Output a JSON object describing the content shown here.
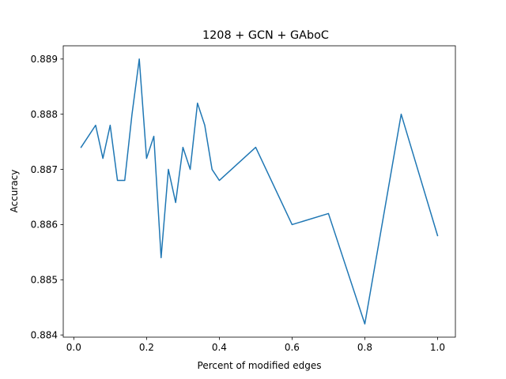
{
  "chart_data": {
    "type": "line",
    "title": "1208 + GCN + GAboC",
    "xlabel": "Percent of modified edges",
    "ylabel": "Accuracy",
    "xlim": [
      -0.029,
      1.049
    ],
    "ylim": [
      0.88396,
      0.88924
    ],
    "xticks": [
      0.0,
      0.2,
      0.4,
      0.6,
      0.8,
      1.0
    ],
    "xtick_labels": [
      "0.0",
      "0.2",
      "0.4",
      "0.6",
      "0.8",
      "1.0"
    ],
    "yticks": [
      0.884,
      0.885,
      0.886,
      0.887,
      0.888,
      0.889
    ],
    "ytick_labels": [
      "0.884",
      "0.885",
      "0.886",
      "0.887",
      "0.888",
      "0.889"
    ],
    "grid": false,
    "series": [
      {
        "color": "#1f77b4",
        "x": [
          0.02,
          0.06,
          0.08,
          0.1,
          0.12,
          0.14,
          0.16,
          0.18,
          0.2,
          0.22,
          0.24,
          0.26,
          0.28,
          0.3,
          0.32,
          0.34,
          0.36,
          0.38,
          0.4,
          0.5,
          0.6,
          0.7,
          0.8,
          0.9,
          1.0
        ],
        "y": [
          0.8874,
          0.8878,
          0.8872,
          0.8878,
          0.8868,
          0.8868,
          0.888,
          0.889,
          0.8872,
          0.8876,
          0.8854,
          0.887,
          0.8864,
          0.8874,
          0.887,
          0.8882,
          0.8878,
          0.887,
          0.8868,
          0.8874,
          0.886,
          0.8862,
          0.8842,
          0.888,
          0.8858
        ]
      }
    ]
  }
}
